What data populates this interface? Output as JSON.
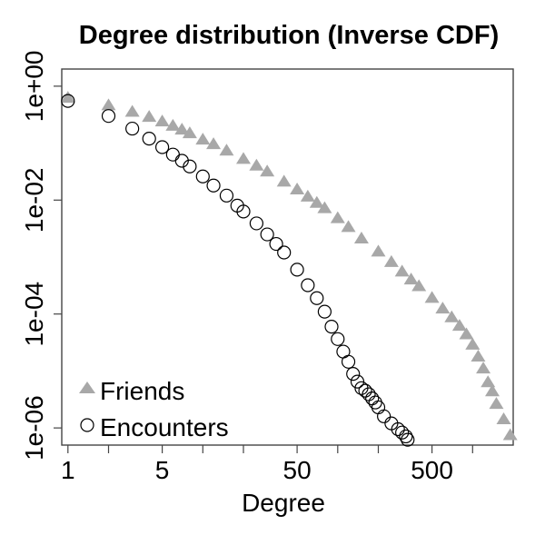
{
  "chart_data": {
    "type": "scatter",
    "title": "Degree distribution (Inverse CDF)",
    "xlabel": "Degree",
    "ylabel": "",
    "x_scale": "log",
    "y_scale": "log",
    "xlim": [
      0.9,
      2000
    ],
    "ylim": [
      5e-07,
      2
    ],
    "x_ticks": [
      {
        "value": 1,
        "label": "1"
      },
      {
        "value": 2,
        "label": ""
      },
      {
        "value": 5,
        "label": "5"
      },
      {
        "value": 10,
        "label": ""
      },
      {
        "value": 20,
        "label": ""
      },
      {
        "value": 50,
        "label": "50"
      },
      {
        "value": 100,
        "label": ""
      },
      {
        "value": 200,
        "label": ""
      },
      {
        "value": 500,
        "label": "500"
      },
      {
        "value": 1000,
        "label": ""
      }
    ],
    "y_ticks": [
      {
        "value": 1,
        "label": "1e+00"
      },
      {
        "value": 0.01,
        "label": "1e-02"
      },
      {
        "value": 0.0001,
        "label": "1e-04"
      },
      {
        "value": 1e-06,
        "label": "1e-06"
      }
    ],
    "legend_position": "bottom-left",
    "grid": false,
    "series": [
      {
        "name": "Friends",
        "marker": "triangle",
        "color": "#a8a8a8",
        "points": [
          [
            1,
            0.65
          ],
          [
            2,
            0.48
          ],
          [
            3,
            0.37
          ],
          [
            4,
            0.3
          ],
          [
            5,
            0.25
          ],
          [
            6,
            0.21
          ],
          [
            7,
            0.18
          ],
          [
            8,
            0.155
          ],
          [
            10,
            0.12
          ],
          [
            12,
            0.1
          ],
          [
            15,
            0.077
          ],
          [
            20,
            0.055
          ],
          [
            25,
            0.042
          ],
          [
            30,
            0.033
          ],
          [
            40,
            0.022
          ],
          [
            50,
            0.016
          ],
          [
            60,
            0.012
          ],
          [
            70,
            0.0093
          ],
          [
            80,
            0.0075
          ],
          [
            100,
            0.005
          ],
          [
            120,
            0.0035
          ],
          [
            150,
            0.0022
          ],
          [
            200,
            0.0013
          ],
          [
            250,
            0.00085
          ],
          [
            300,
            0.00058
          ],
          [
            350,
            0.00042
          ],
          [
            400,
            0.00032
          ],
          [
            500,
            0.0002
          ],
          [
            600,
            0.00013
          ],
          [
            700,
            9.12e-05
          ],
          [
            800,
            6.46e-05
          ],
          [
            900,
            4.57e-05
          ],
          [
            1000,
            3.02e-05
          ],
          [
            1100,
            1.86e-05
          ],
          [
            1200,
            1.15e-05
          ],
          [
            1300,
            6.61e-06
          ],
          [
            1400,
            4.57e-06
          ],
          [
            1500,
            2.75e-06
          ],
          [
            1700,
            1.48e-06
          ],
          [
            1900,
            7.76e-07
          ]
        ]
      },
      {
        "name": "Encounters",
        "marker": "circle",
        "color": "#000000",
        "points": [
          [
            1,
            0.55
          ],
          [
            2,
            0.3
          ],
          [
            3,
            0.18
          ],
          [
            4,
            0.12
          ],
          [
            5,
            0.085
          ],
          [
            6,
            0.063
          ],
          [
            7,
            0.049
          ],
          [
            8,
            0.039
          ],
          [
            10,
            0.026
          ],
          [
            12,
            0.018
          ],
          [
            15,
            0.012
          ],
          [
            18,
            0.008
          ],
          [
            20,
            0.0063
          ],
          [
            25,
            0.0039
          ],
          [
            30,
            0.0025
          ],
          [
            35,
            0.0017
          ],
          [
            40,
            0.0012
          ],
          [
            50,
            0.0006
          ],
          [
            60,
            0.00032
          ],
          [
            70,
            0.00019
          ],
          [
            80,
            0.00011
          ],
          [
            90,
            6e-05
          ],
          [
            100,
            3.63e-05
          ],
          [
            110,
            2.19e-05
          ],
          [
            120,
            1.45e-05
          ],
          [
            130,
            8.9e-06
          ],
          [
            140,
            6.5e-06
          ],
          [
            150,
            5e-06
          ],
          [
            160,
            4.5e-06
          ],
          [
            170,
            3.9e-06
          ],
          [
            180,
            3.3e-06
          ],
          [
            190,
            2.8e-06
          ],
          [
            200,
            2.3e-06
          ],
          [
            220,
            1.6e-06
          ],
          [
            250,
            1.2e-06
          ],
          [
            280,
            9.5e-07
          ],
          [
            300,
            8.3e-07
          ],
          [
            320,
            7.1e-07
          ],
          [
            330,
            6.2e-07
          ]
        ]
      }
    ]
  }
}
